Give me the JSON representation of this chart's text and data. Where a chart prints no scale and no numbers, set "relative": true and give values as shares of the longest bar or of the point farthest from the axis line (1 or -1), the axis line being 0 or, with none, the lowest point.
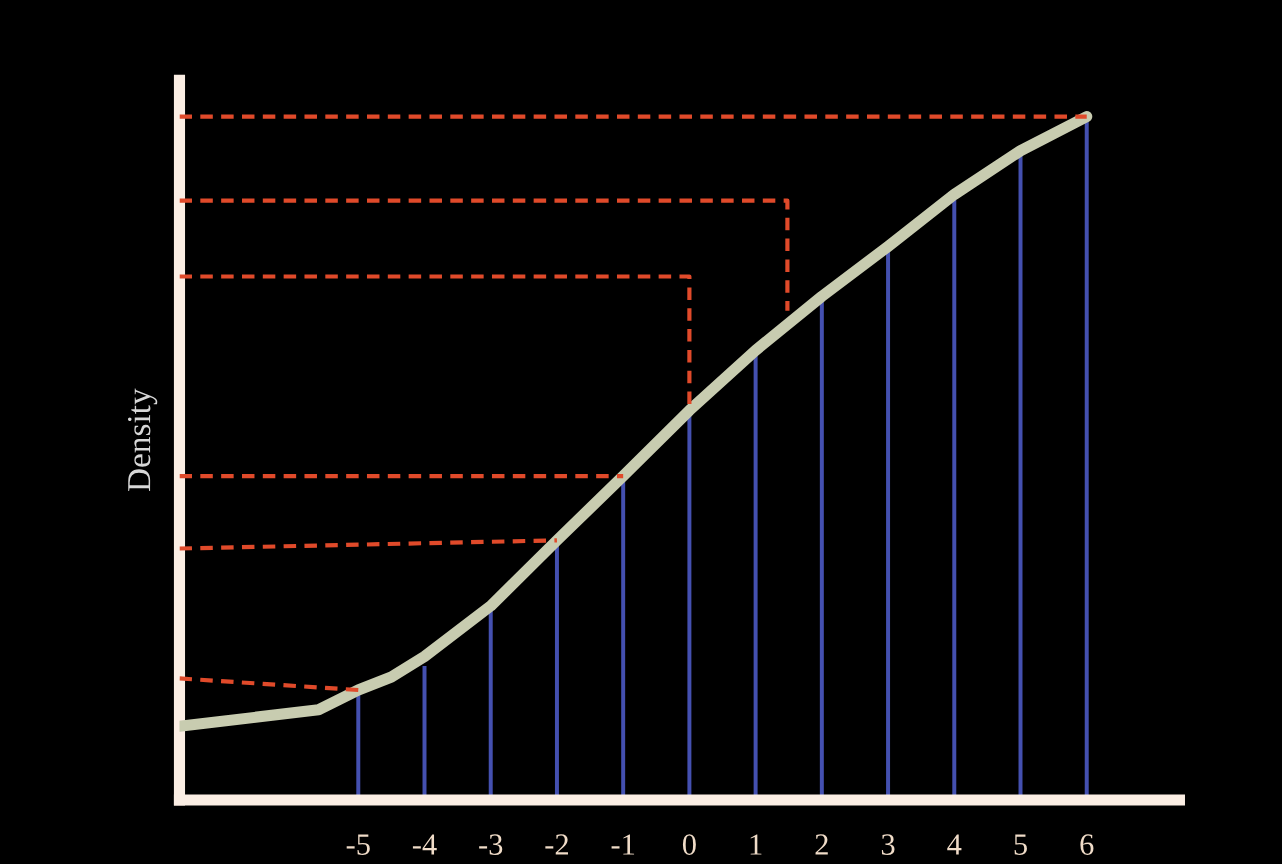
{
  "chart_data": {
    "type": "line",
    "relative": true,
    "ylabel": "Density",
    "xlim": [
      -7.7,
      7.4
    ],
    "xticks": [
      -5,
      -4,
      -3,
      -2,
      -1,
      0,
      1,
      2,
      3,
      4,
      5,
      6
    ],
    "grid": false,
    "marker": "none",
    "series": [
      {
        "type": "bar",
        "color": "#4450b0",
        "x": [
          -5,
          -4,
          -3,
          -2,
          -1,
          0,
          1,
          2,
          3,
          4,
          5,
          6
        ],
        "values": [
          0.161,
          0.196,
          0.284,
          0.38,
          0.474,
          0.57,
          0.658,
          0.737,
          0.81,
          0.886,
          0.95,
          1.0
        ]
      },
      {
        "color": "#c8ccb0",
        "line_style": "solid",
        "x": [
          -7.7,
          -5.6,
          -5,
          -4.5,
          -4,
          -3,
          -2,
          -1,
          0,
          1,
          2,
          3,
          4,
          5,
          6
        ],
        "values": [
          0.108,
          0.132,
          0.161,
          0.18,
          0.21,
          0.284,
          0.38,
          0.474,
          0.57,
          0.658,
          0.737,
          0.81,
          0.886,
          0.95,
          1.0
        ]
      },
      {
        "type": "line",
        "color": "#e04a2a",
        "line_style": "dashed",
        "x": [
          -7.7,
          6
        ],
        "values": [
          1.0,
          1.0
        ]
      },
      {
        "type": "line",
        "color": "#e04a2a",
        "line_style": "dashed",
        "x": [
          -7.7,
          1.48,
          1.48
        ],
        "values": [
          0.877,
          0.877,
          0.716
        ]
      },
      {
        "type": "line",
        "color": "#e04a2a",
        "line_style": "dashed",
        "x": [
          -7.7,
          0,
          0
        ],
        "values": [
          0.766,
          0.766,
          0.57
        ]
      },
      {
        "type": "line",
        "color": "#e04a2a",
        "line_style": "dashed",
        "x": [
          -7.7,
          -1
        ],
        "values": [
          0.474,
          0.474
        ]
      },
      {
        "type": "line",
        "color": "#e04a2a",
        "line_style": "dashed",
        "x": [
          -7.7,
          -2
        ],
        "values": [
          0.368,
          0.38
        ]
      },
      {
        "type": "line",
        "color": "#e04a2a",
        "line_style": "dashed",
        "x": [
          -7.7,
          -5
        ],
        "values": [
          0.178,
          0.161
        ]
      }
    ]
  }
}
